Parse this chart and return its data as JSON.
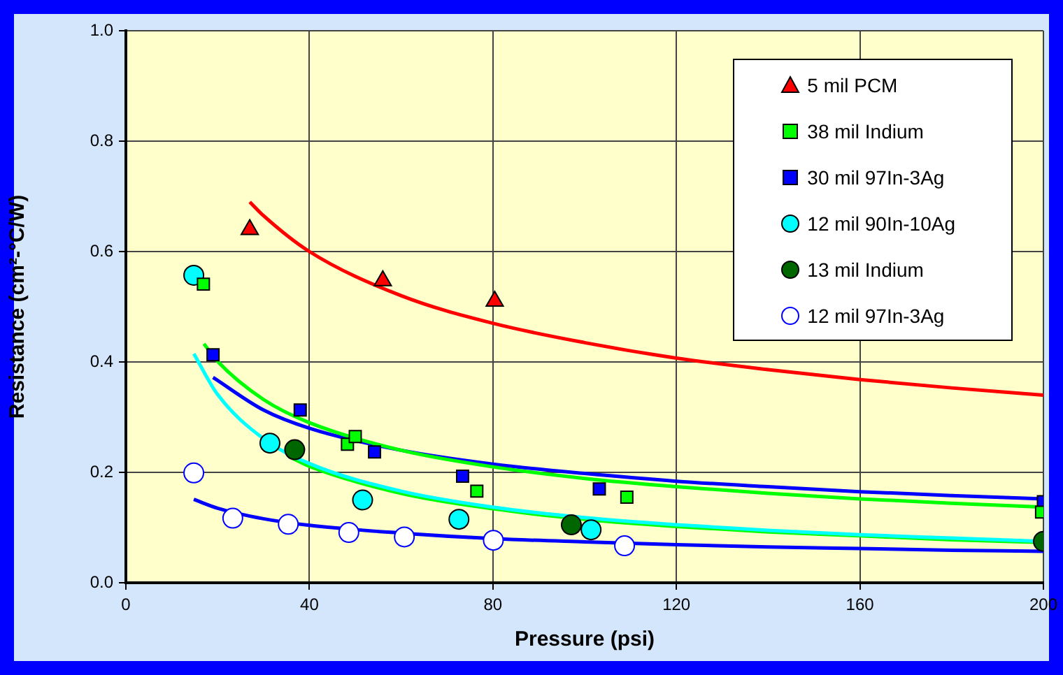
{
  "chart_data": {
    "type": "scatter",
    "xlabel": "Pressure (psi)",
    "ylabel": "Resistance (cm²-°C/W)",
    "xlim": [
      0,
      200
    ],
    "xticks": [
      0,
      40,
      80,
      120,
      160,
      200
    ],
    "ylim": [
      0,
      1
    ],
    "yticks": [
      {
        "value": 0,
        "label": "0.0"
      },
      0.2,
      0.4,
      0.6,
      0.8,
      {
        "value": 1,
        "label": "1.0"
      }
    ],
    "grid": true,
    "legend": "top right",
    "series": [
      {
        "name": "5 mil PCM",
        "type": "scatter",
        "marker": "triangle",
        "color": "#ff0000",
        "x": [
          27,
          56,
          80.4
        ],
        "values": [
          0.64,
          0.547,
          0.51
        ]
      },
      {
        "name": "38 mil Indium",
        "type": "scatter",
        "marker": "square",
        "color": "#00ff00",
        "x": [
          16.9,
          48.3,
          50,
          76.5,
          109.2,
          199.6
        ],
        "values": [
          0.541,
          0.251,
          0.265,
          0.166,
          0.155,
          0.128
        ]
      },
      {
        "name": "30 mil 97In-3Ag",
        "type": "scatter",
        "marker": "square",
        "color": "#0000ff",
        "x": [
          19,
          38,
          54.2,
          73.4,
          103.2,
          200
        ],
        "values": [
          0.413,
          0.313,
          0.237,
          0.193,
          0.17,
          0.147
        ]
      },
      {
        "name": "12 mil 90In-10Ag",
        "type": "scatter",
        "marker": "circle",
        "color": "#00ffff",
        "x": [
          14.8,
          31.4,
          51.6,
          72.6,
          101.4
        ],
        "values": [
          0.557,
          0.253,
          0.15,
          0.115,
          0.096
        ]
      },
      {
        "name": "13 mil Indium",
        "type": "scatter",
        "marker": "circle",
        "color": "#006600",
        "x": [
          36.8,
          97.1,
          200
        ],
        "values": [
          0.241,
          0.105,
          0.075
        ]
      },
      {
        "name": "12 mil 97In-3Ag",
        "type": "scatter",
        "marker": "circle-open",
        "color": "#0000ff",
        "x": [
          14.8,
          23.3,
          35.4,
          48.6,
          60.7,
          80.1,
          108.7
        ],
        "values": [
          0.199,
          0.117,
          0.106,
          0.091,
          0.083,
          0.077,
          0.067
        ]
      },
      {
        "type": "line",
        "color": "#ff0000",
        "x": [
          27,
          30,
          40,
          60,
          80,
          100,
          120,
          140,
          160,
          180,
          200
        ],
        "values": [
          0.69,
          0.665,
          0.6,
          0.52,
          0.47,
          0.435,
          0.407,
          0.386,
          0.368,
          0.353,
          0.34
        ]
      },
      {
        "type": "line",
        "color": "#00ffff",
        "x": [
          14.8,
          20,
          30,
          40,
          60,
          80,
          100,
          120,
          140,
          160,
          180,
          200
        ],
        "values": [
          0.415,
          0.341,
          0.261,
          0.216,
          0.166,
          0.137,
          0.118,
          0.105,
          0.095,
          0.087,
          0.081,
          0.075
        ]
      },
      {
        "type": "line",
        "color": "#00ff00",
        "x": [
          17,
          20,
          30,
          40,
          60,
          80,
          100,
          120,
          140,
          160,
          180,
          200
        ],
        "values": [
          0.433,
          0.401,
          0.332,
          0.29,
          0.24,
          0.21,
          0.189,
          0.174,
          0.162,
          0.152,
          0.144,
          0.137
        ]
      },
      {
        "type": "line",
        "color": "#0000ff",
        "x": [
          19,
          30,
          40,
          60,
          80,
          100,
          120,
          140,
          160,
          180,
          200
        ],
        "values": [
          0.372,
          0.313,
          0.28,
          0.24,
          0.215,
          0.198,
          0.184,
          0.174,
          0.165,
          0.158,
          0.152
        ]
      },
      {
        "type": "line",
        "color": "#00ff00",
        "x": [
          36.4,
          40,
          60,
          80,
          100,
          120,
          140,
          160,
          180,
          200
        ],
        "values": [
          0.225,
          0.211,
          0.162,
          0.134,
          0.115,
          0.102,
          0.092,
          0.085,
          0.078,
          0.073
        ]
      },
      {
        "type": "line",
        "color": "#0000ff",
        "x": [
          14.8,
          20,
          30,
          40,
          60,
          80,
          100,
          120,
          140,
          160,
          180,
          200
        ],
        "values": [
          0.151,
          0.135,
          0.116,
          0.104,
          0.09,
          0.08,
          0.074,
          0.069,
          0.065,
          0.062,
          0.059,
          0.057
        ]
      }
    ]
  }
}
